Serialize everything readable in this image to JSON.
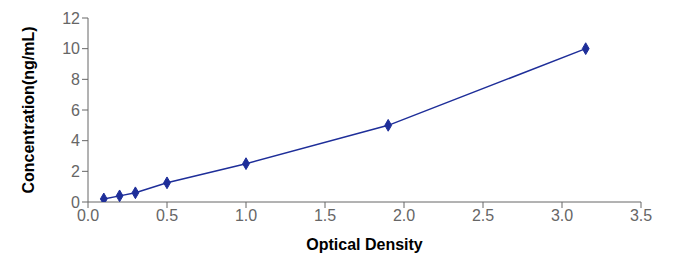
{
  "chart_data": {
    "type": "line",
    "x": [
      0.1,
      0.2,
      0.3,
      0.5,
      1.0,
      1.9,
      3.15
    ],
    "values": [
      0.2,
      0.4,
      0.6,
      1.25,
      2.5,
      5.0,
      10.0
    ],
    "xlabel": "Optical Density",
    "ylabel": "Concentration(ng/mL)",
    "xlim": [
      0.0,
      3.5
    ],
    "ylim": [
      0,
      12
    ],
    "xticks": [
      {
        "value": 0.0,
        "label": "0.0"
      },
      0.5,
      {
        "value": 1.0,
        "label": "1.0"
      },
      1.5,
      {
        "value": 2.0,
        "label": "2.0"
      },
      2.5,
      {
        "value": 3.0,
        "label": "3.0"
      },
      3.5
    ],
    "yticks": [
      0,
      2,
      4,
      6,
      8,
      10,
      12
    ],
    "color": "#1e2e99",
    "marker": "diamond",
    "grid": false
  }
}
